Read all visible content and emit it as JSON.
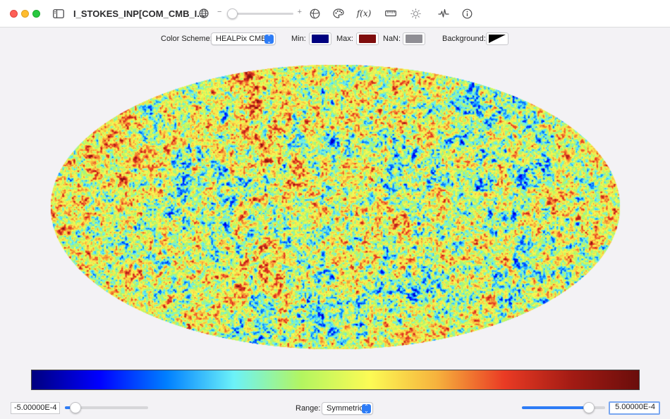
{
  "window": {
    "title": "I_STOKES_INP[COM_CMB_I...",
    "toolbar_icons": [
      "sidebar-toggle-icon",
      "globe-icon",
      "zoom-minus",
      "zoom-plus",
      "projection-icon",
      "palette-icon",
      "function-icon",
      "ruler-icon",
      "brightness-icon",
      "waveform-icon",
      "info-icon"
    ],
    "zoom": {
      "minus": "−",
      "plus": "+",
      "level": 0.05
    },
    "function_glyph": "f(x)"
  },
  "options": {
    "color_scheme_label": "Color Scheme:",
    "color_scheme_value": "HEALPix CMB",
    "min_label": "Min:",
    "min_color": "#00007f",
    "max_label": "Max:",
    "max_color": "#7f0d0d",
    "nan_label": "NaN:",
    "nan_color": "#8f8e94",
    "background_label": "Background:"
  },
  "colormap": {
    "stops": [
      "#00007f",
      "#0000ff",
      "#007fff",
      "#6cf2f8",
      "#b3f560",
      "#fcfb55",
      "#f6b23d",
      "#ea3b24",
      "#a31b14",
      "#6a0d0b"
    ]
  },
  "bottom": {
    "min_value": "-5.00000E-4",
    "max_value": "5.00000E-4",
    "range_label": "Range:",
    "range_value": "Symmetric",
    "left_slider_level": 0.07,
    "right_slider_level": 0.85
  }
}
